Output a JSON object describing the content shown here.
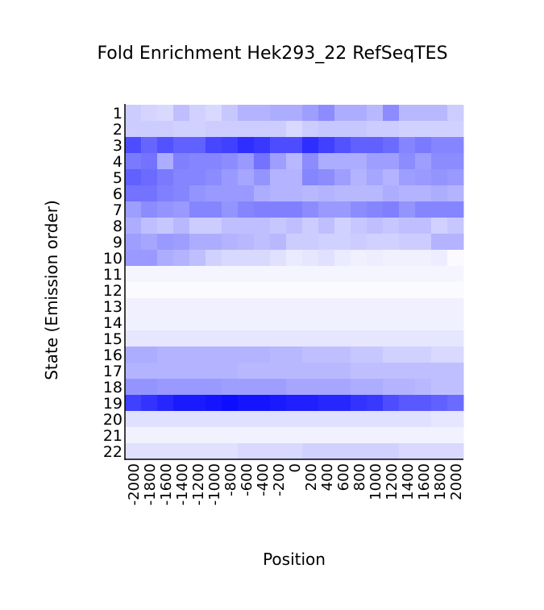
{
  "chart_data": {
    "type": "heatmap",
    "title": "Fold Enrichment Hek293_22 RefSeqTES",
    "xlabel": "Position",
    "ylabel": "State (Emission order)",
    "x": [
      "-2000",
      "-1800",
      "-1600",
      "-1400",
      "-1200",
      "-1000",
      "-800",
      "-600",
      "-400",
      "-200",
      "0",
      "200",
      "400",
      "600",
      "800",
      "1000",
      "1200",
      "1400",
      "1600",
      "1800",
      "2000"
    ],
    "y": [
      "1",
      "2",
      "3",
      "4",
      "5",
      "6",
      "7",
      "8",
      "9",
      "10",
      "11",
      "12",
      "13",
      "14",
      "15",
      "16",
      "17",
      "18",
      "19",
      "20",
      "21",
      "22"
    ],
    "color_low": "#ffffff",
    "color_high": "#0000ff",
    "values": [
      [
        0.2,
        0.17,
        0.15,
        0.25,
        0.18,
        0.15,
        0.22,
        0.3,
        0.3,
        0.32,
        0.32,
        0.38,
        0.45,
        0.32,
        0.32,
        0.28,
        0.45,
        0.28,
        0.28,
        0.28,
        0.2
      ],
      [
        0.2,
        0.2,
        0.2,
        0.18,
        0.18,
        0.2,
        0.2,
        0.2,
        0.2,
        0.2,
        0.15,
        0.2,
        0.22,
        0.22,
        0.22,
        0.2,
        0.2,
        0.18,
        0.18,
        0.18,
        0.18
      ],
      [
        0.7,
        0.6,
        0.68,
        0.62,
        0.62,
        0.72,
        0.75,
        0.82,
        0.78,
        0.7,
        0.7,
        0.82,
        0.75,
        0.68,
        0.62,
        0.62,
        0.58,
        0.48,
        0.52,
        0.48,
        0.48
      ],
      [
        0.52,
        0.55,
        0.32,
        0.5,
        0.48,
        0.48,
        0.45,
        0.4,
        0.55,
        0.38,
        0.28,
        0.45,
        0.32,
        0.32,
        0.32,
        0.38,
        0.38,
        0.45,
        0.38,
        0.45,
        0.45
      ],
      [
        0.62,
        0.58,
        0.52,
        0.48,
        0.48,
        0.45,
        0.4,
        0.35,
        0.42,
        0.3,
        0.3,
        0.48,
        0.45,
        0.38,
        0.3,
        0.35,
        0.3,
        0.38,
        0.4,
        0.42,
        0.4
      ],
      [
        0.55,
        0.55,
        0.5,
        0.48,
        0.42,
        0.4,
        0.4,
        0.4,
        0.32,
        0.3,
        0.3,
        0.28,
        0.3,
        0.28,
        0.28,
        0.28,
        0.32,
        0.3,
        0.3,
        0.32,
        0.3
      ],
      [
        0.38,
        0.45,
        0.42,
        0.4,
        0.48,
        0.48,
        0.42,
        0.48,
        0.5,
        0.5,
        0.5,
        0.45,
        0.4,
        0.4,
        0.45,
        0.48,
        0.5,
        0.42,
        0.48,
        0.48,
        0.48
      ],
      [
        0.32,
        0.25,
        0.22,
        0.28,
        0.2,
        0.2,
        0.25,
        0.25,
        0.25,
        0.22,
        0.25,
        0.2,
        0.25,
        0.18,
        0.22,
        0.25,
        0.22,
        0.25,
        0.25,
        0.18,
        0.22
      ],
      [
        0.38,
        0.35,
        0.4,
        0.38,
        0.32,
        0.32,
        0.3,
        0.28,
        0.25,
        0.28,
        0.2,
        0.2,
        0.18,
        0.18,
        0.2,
        0.18,
        0.18,
        0.2,
        0.2,
        0.3,
        0.3
      ],
      [
        0.4,
        0.4,
        0.32,
        0.3,
        0.25,
        0.18,
        0.15,
        0.15,
        0.15,
        0.12,
        0.08,
        0.1,
        0.12,
        0.08,
        0.06,
        0.07,
        0.06,
        0.06,
        0.06,
        0.07,
        0.02
      ],
      [
        0.04,
        0.04,
        0.04,
        0.04,
        0.04,
        0.04,
        0.04,
        0.04,
        0.04,
        0.04,
        0.04,
        0.04,
        0.04,
        0.04,
        0.04,
        0.04,
        0.04,
        0.04,
        0.04,
        0.04,
        0.04
      ],
      [
        0.02,
        0.02,
        0.02,
        0.02,
        0.02,
        0.02,
        0.02,
        0.02,
        0.02,
        0.02,
        0.02,
        0.02,
        0.02,
        0.02,
        0.02,
        0.02,
        0.02,
        0.02,
        0.02,
        0.02,
        0.02
      ],
      [
        0.06,
        0.06,
        0.06,
        0.06,
        0.06,
        0.06,
        0.06,
        0.06,
        0.06,
        0.06,
        0.06,
        0.06,
        0.06,
        0.06,
        0.06,
        0.06,
        0.06,
        0.06,
        0.06,
        0.06,
        0.06
      ],
      [
        0.06,
        0.06,
        0.06,
        0.06,
        0.06,
        0.06,
        0.06,
        0.06,
        0.06,
        0.06,
        0.06,
        0.06,
        0.06,
        0.06,
        0.06,
        0.06,
        0.06,
        0.06,
        0.06,
        0.06,
        0.06
      ],
      [
        0.1,
        0.1,
        0.1,
        0.1,
        0.1,
        0.1,
        0.1,
        0.1,
        0.1,
        0.1,
        0.1,
        0.1,
        0.1,
        0.1,
        0.1,
        0.1,
        0.1,
        0.1,
        0.1,
        0.1,
        0.1
      ],
      [
        0.32,
        0.32,
        0.3,
        0.3,
        0.3,
        0.3,
        0.3,
        0.3,
        0.3,
        0.28,
        0.28,
        0.25,
        0.25,
        0.25,
        0.22,
        0.22,
        0.18,
        0.18,
        0.18,
        0.15,
        0.15
      ],
      [
        0.3,
        0.3,
        0.3,
        0.3,
        0.3,
        0.3,
        0.3,
        0.28,
        0.28,
        0.28,
        0.28,
        0.28,
        0.28,
        0.28,
        0.25,
        0.25,
        0.25,
        0.25,
        0.25,
        0.25,
        0.25
      ],
      [
        0.42,
        0.42,
        0.4,
        0.4,
        0.4,
        0.4,
        0.38,
        0.38,
        0.38,
        0.38,
        0.35,
        0.35,
        0.35,
        0.35,
        0.32,
        0.32,
        0.3,
        0.3,
        0.28,
        0.25,
        0.25
      ],
      [
        0.75,
        0.8,
        0.85,
        0.9,
        0.9,
        0.92,
        0.95,
        0.92,
        0.92,
        0.9,
        0.88,
        0.88,
        0.85,
        0.85,
        0.8,
        0.78,
        0.7,
        0.65,
        0.65,
        0.62,
        0.58
      ],
      [
        0.12,
        0.12,
        0.12,
        0.12,
        0.12,
        0.12,
        0.12,
        0.12,
        0.12,
        0.12,
        0.12,
        0.12,
        0.12,
        0.12,
        0.12,
        0.12,
        0.12,
        0.12,
        0.12,
        0.1,
        0.1
      ],
      [
        0.05,
        0.05,
        0.05,
        0.05,
        0.05,
        0.05,
        0.05,
        0.05,
        0.05,
        0.05,
        0.05,
        0.05,
        0.05,
        0.05,
        0.05,
        0.05,
        0.05,
        0.05,
        0.05,
        0.05,
        0.05
      ],
      [
        0.12,
        0.12,
        0.12,
        0.12,
        0.12,
        0.12,
        0.12,
        0.15,
        0.15,
        0.15,
        0.15,
        0.18,
        0.18,
        0.18,
        0.18,
        0.18,
        0.18,
        0.15,
        0.15,
        0.15,
        0.15
      ]
    ]
  }
}
